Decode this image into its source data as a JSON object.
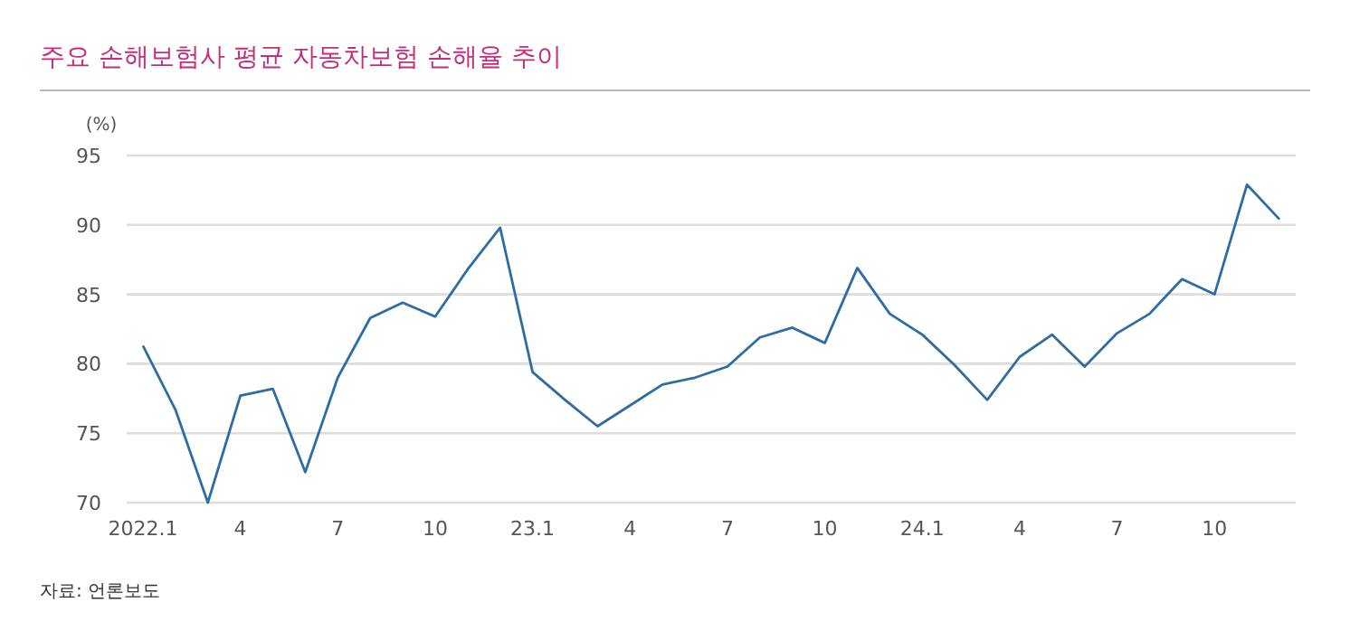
{
  "chart_data": {
    "type": "line",
    "title": "주요 손해보험사 평균 자동차보험 손해율 추이",
    "ylabel": "(%)",
    "categories": [
      "2022.1",
      null,
      null,
      "4",
      null,
      null,
      "7",
      null,
      null,
      "10",
      null,
      null,
      "23.1",
      null,
      null,
      "4",
      null,
      null,
      "7",
      null,
      null,
      "10",
      null,
      null,
      "24.1",
      null,
      null,
      "4",
      null,
      null,
      "7",
      null,
      null,
      "10",
      null,
      null
    ],
    "series": [
      {
        "color": "#2e6da4",
        "values": [
          81.3,
          76.7,
          70.0,
          77.7,
          78.2,
          72.2,
          79.0,
          83.3,
          84.4,
          83.4,
          86.8,
          89.8,
          79.4,
          77.4,
          75.5,
          77.0,
          78.5,
          79.0,
          79.8,
          81.9,
          82.6,
          81.5,
          86.9,
          83.6,
          82.1,
          79.9,
          77.4,
          80.5,
          82.1,
          79.8,
          82.2,
          83.6,
          86.1,
          85.0,
          92.9,
          90.4
        ]
      }
    ],
    "ylim": [
      70,
      95
    ],
    "yticks": [
      70,
      75,
      80,
      85,
      90,
      95
    ],
    "grid": "y",
    "line_style": "solid",
    "marker": "none",
    "annotations": [
      "자료: 언론보도"
    ]
  }
}
